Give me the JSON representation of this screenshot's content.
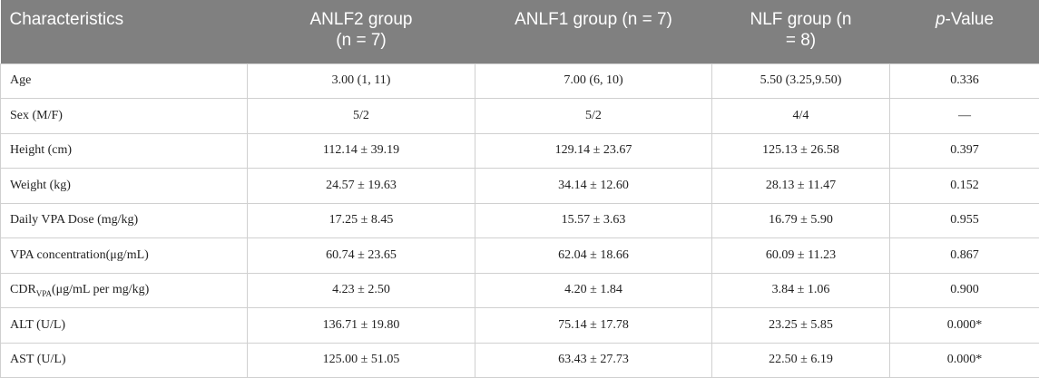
{
  "table": {
    "header": [
      "Characteristics",
      "ANLF2 group (n = 7)",
      "ANLF1 group (n = 7)",
      "NLF group (n = 8)",
      {
        "italic": "p",
        "rest": "-Value"
      }
    ],
    "rows": [
      [
        "Age",
        "3.00 (1, 11)",
        "7.00 (6, 10)",
        "5.50 (3.25,9.50)",
        "0.336"
      ],
      [
        "Sex (M/F)",
        "5/2",
        "5/2",
        "4/4",
        "—"
      ],
      [
        "Height (cm)",
        "112.14 ± 39.19",
        "129.14 ± 23.67",
        "125.13 ± 26.58",
        "0.397"
      ],
      [
        "Weight (kg)",
        "24.57 ± 19.63",
        "34.14 ± 12.60",
        "28.13 ± 11.47",
        "0.152"
      ],
      [
        "Daily VPA Dose (mg/kg)",
        "17.25 ± 8.45",
        "15.57 ± 3.63",
        "16.79 ± 5.90",
        "0.955"
      ],
      [
        "VPA concentration(μg/mL)",
        "60.74 ± 23.65",
        "62.04 ± 18.66",
        "60.09 ± 11.23",
        "0.867"
      ],
      [
        {
          "text": "CDR",
          "sub": "VPA",
          "rest": "(μg/mL per mg/kg)"
        },
        "4.23 ± 2.50",
        "4.20 ± 1.84",
        "3.84 ± 1.06",
        "0.900"
      ],
      [
        "ALT (U/L)",
        "136.71 ± 19.80",
        "75.14 ± 17.78",
        "23.25 ± 5.85",
        "0.000*"
      ],
      [
        "AST (U/L)",
        "125.00 ± 51.05",
        "63.43 ± 27.73",
        "22.50 ± 6.19",
        "0.000*"
      ]
    ]
  }
}
